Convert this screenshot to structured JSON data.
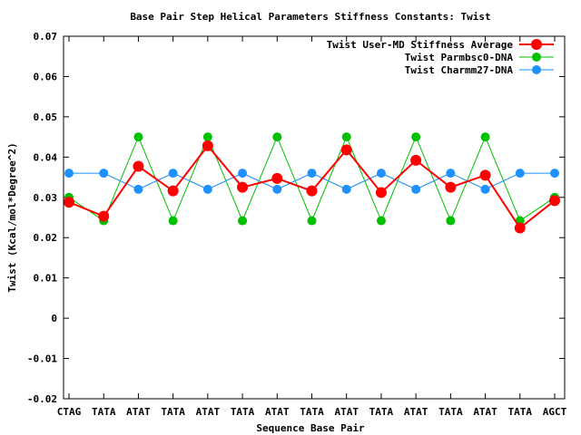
{
  "chart_data": {
    "type": "line",
    "title": "Base Pair Step Helical Parameters Stiffness Constants: Twist",
    "xlabel": "Sequence Base Pair",
    "ylabel": "Twist (Kcal/mol*Degree^2)",
    "categories": [
      "CTAG",
      "TATA",
      "ATAT",
      "TATA",
      "ATAT",
      "TATA",
      "ATAT",
      "TATA",
      "ATAT",
      "TATA",
      "ATAT",
      "TATA",
      "ATAT",
      "TATA",
      "AGCT"
    ],
    "ylim": [
      -0.02,
      0.07
    ],
    "yticks": [
      -0.02,
      -0.01,
      0,
      0.01,
      0.02,
      0.03,
      0.04,
      0.05,
      0.06,
      0.07
    ],
    "ytick_labels": [
      "-0.02",
      "-0.01",
      "0",
      "0.01",
      "0.02",
      "0.03",
      "0.04",
      "0.05",
      "0.06",
      "0.07"
    ],
    "grid": false,
    "legend_position": "top-right",
    "series": [
      {
        "name": "Twist User-MD Stiffness Average",
        "color": "#ff0000",
        "values": [
          0.0288,
          0.0253,
          0.0377,
          0.0316,
          0.0428,
          0.0325,
          0.0347,
          0.0316,
          0.0418,
          0.0312,
          0.0392,
          0.0325,
          0.0355,
          0.0224,
          0.0292
        ]
      },
      {
        "name": "Twist Parmbsc0-DNA",
        "color": "#00c000",
        "values": [
          0.03,
          0.0242,
          0.045,
          0.0242,
          0.045,
          0.0242,
          0.045,
          0.0242,
          0.045,
          0.0242,
          0.045,
          0.0242,
          0.045,
          0.0242,
          0.03
        ]
      },
      {
        "name": "Twist Charmm27-DNA",
        "color": "#1e90ff",
        "values": [
          0.036,
          0.036,
          0.032,
          0.036,
          0.032,
          0.036,
          0.032,
          0.036,
          0.032,
          0.036,
          0.032,
          0.036,
          0.032,
          0.036,
          0.036
        ]
      }
    ]
  }
}
